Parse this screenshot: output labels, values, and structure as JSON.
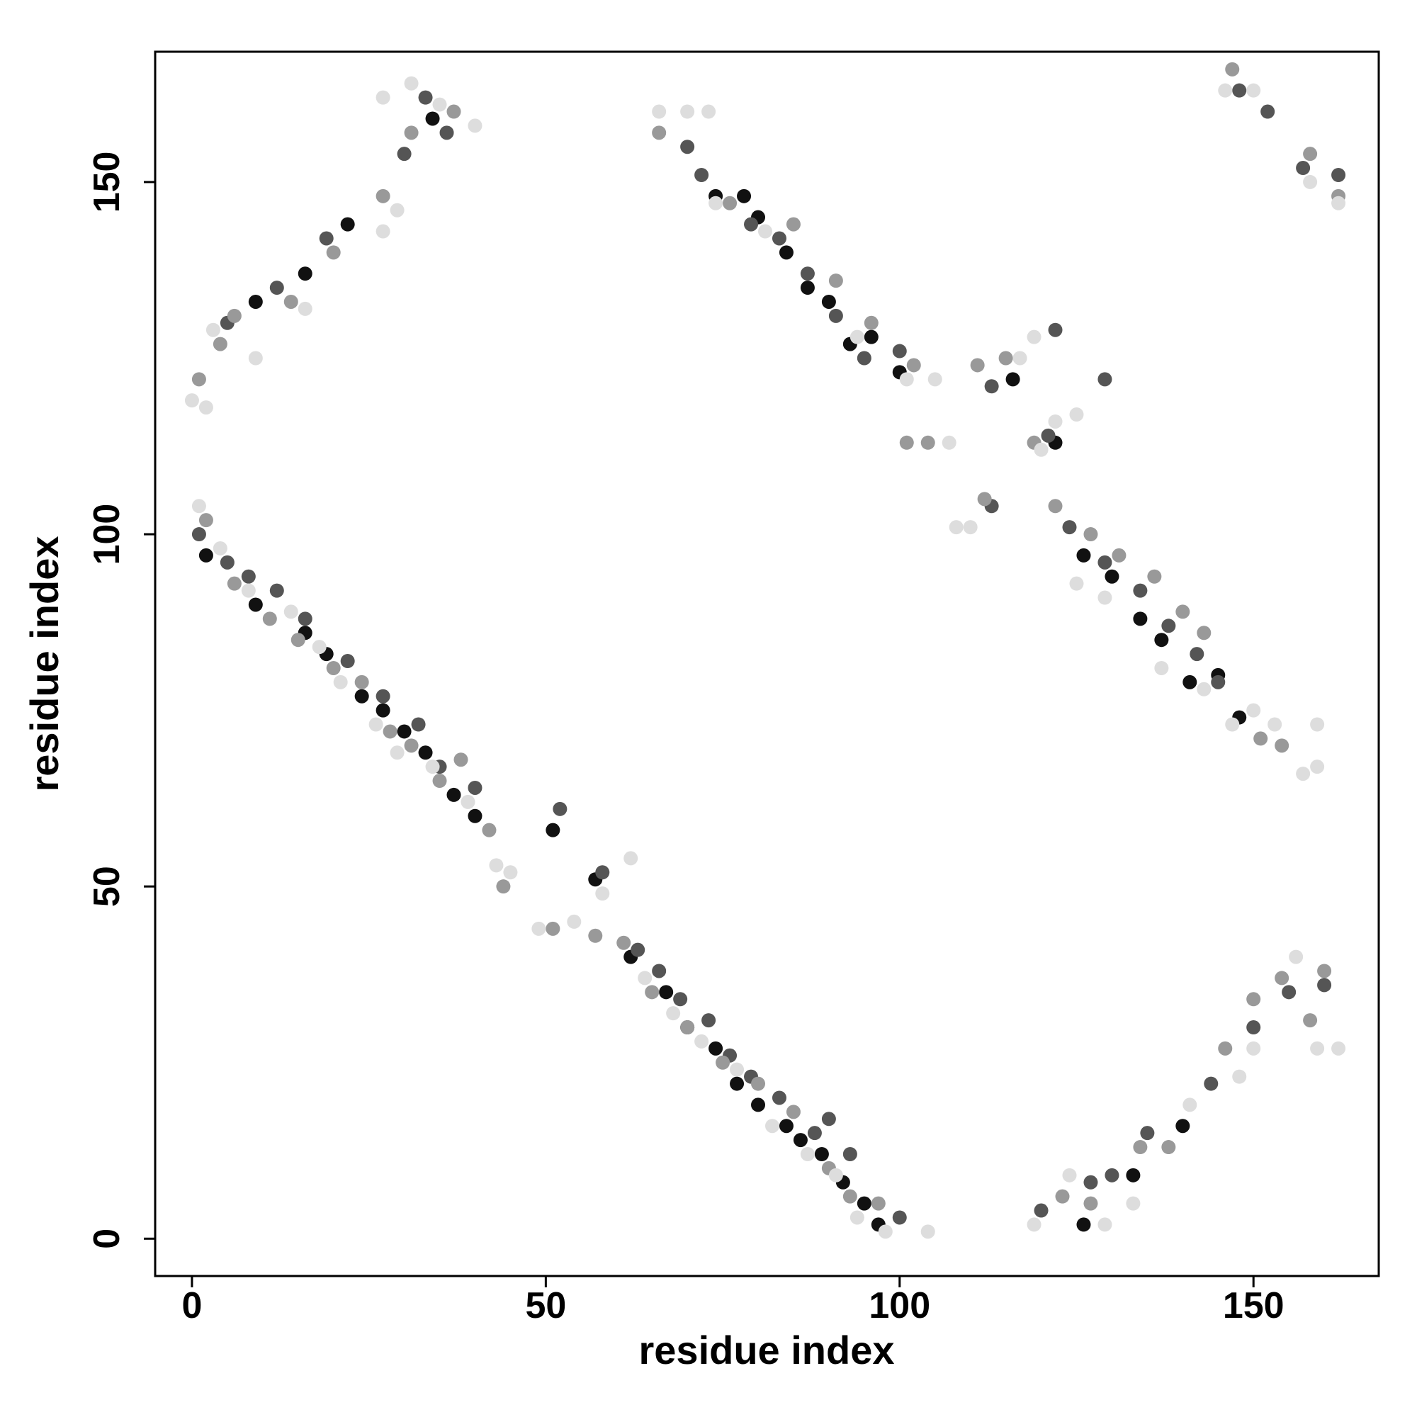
{
  "chart_data": {
    "type": "scatter",
    "xlabel": "residue index",
    "ylabel": "residue index",
    "xlim": [
      -5.2,
      167.7
    ],
    "ylim": [
      -5.3,
      168.5
    ],
    "xticks": [
      0,
      50,
      100,
      150
    ],
    "yticks": [
      0,
      50,
      100,
      150
    ],
    "series": [
      {
        "color": "#111111",
        "x": [
          2,
          9,
          16,
          19,
          24,
          27,
          30,
          33,
          37,
          40,
          51,
          57,
          62,
          67,
          70,
          74,
          77,
          80,
          84,
          86,
          89,
          92,
          95,
          97,
          9,
          16,
          22,
          34,
          74,
          78,
          80,
          84,
          87,
          90,
          93,
          96,
          100,
          116,
          122,
          126,
          130,
          134,
          137,
          141,
          145,
          148,
          133,
          140,
          126
        ],
        "y": [
          97,
          90,
          86,
          83,
          77,
          75,
          72,
          69,
          63,
          60,
          58,
          51,
          40,
          35,
          30,
          27,
          22,
          19,
          16,
          14,
          12,
          8,
          5,
          2,
          133,
          137,
          144,
          159,
          148,
          148,
          145,
          140,
          135,
          133,
          127,
          128,
          123,
          122,
          113,
          97,
          94,
          88,
          85,
          79,
          80,
          74,
          9,
          16,
          2
        ]
      },
      {
        "color": "#555555",
        "x": [
          1,
          5,
          8,
          12,
          16,
          22,
          27,
          32,
          35,
          40,
          52,
          58,
          63,
          66,
          69,
          73,
          76,
          79,
          83,
          88,
          90,
          93,
          100,
          5,
          12,
          19,
          30,
          33,
          36,
          70,
          72,
          79,
          83,
          87,
          91,
          95,
          100,
          113,
          121,
          124,
          129,
          134,
          138,
          142,
          145,
          120,
          127,
          130,
          135,
          144,
          150,
          155,
          160,
          148,
          152,
          157,
          162,
          122,
          129,
          113
        ],
        "y": [
          100,
          96,
          94,
          92,
          88,
          82,
          77,
          73,
          67,
          64,
          61,
          52,
          41,
          38,
          34,
          31,
          26,
          23,
          20,
          15,
          17,
          12,
          3,
          130,
          135,
          142,
          154,
          162,
          157,
          155,
          151,
          144,
          142,
          137,
          131,
          125,
          126,
          121,
          114,
          101,
          96,
          92,
          87,
          83,
          79,
          4,
          8,
          9,
          15,
          22,
          30,
          35,
          36,
          163,
          160,
          152,
          151,
          129,
          122,
          104
        ]
      },
      {
        "color": "#999999",
        "x": [
          2,
          6,
          11,
          15,
          20,
          24,
          28,
          31,
          35,
          38,
          42,
          44,
          51,
          57,
          61,
          65,
          70,
          75,
          80,
          85,
          90,
          93,
          97,
          1,
          4,
          6,
          14,
          20,
          27,
          31,
          37,
          66,
          76,
          85,
          91,
          96,
          102,
          111,
          115,
          119,
          122,
          127,
          131,
          136,
          140,
          143,
          151,
          154,
          123,
          127,
          134,
          138,
          146,
          150,
          154,
          158,
          160,
          147,
          158,
          162,
          101,
          104,
          112
        ],
        "y": [
          102,
          93,
          88,
          85,
          81,
          79,
          72,
          70,
          65,
          68,
          58,
          50,
          44,
          43,
          42,
          35,
          30,
          25,
          22,
          18,
          10,
          6,
          5,
          122,
          127,
          131,
          133,
          140,
          148,
          157,
          160,
          157,
          147,
          144,
          136,
          130,
          124,
          124,
          125,
          113,
          104,
          100,
          97,
          94,
          89,
          86,
          71,
          70,
          6,
          5,
          13,
          13,
          27,
          34,
          37,
          31,
          38,
          166,
          154,
          148,
          113,
          113,
          105
        ]
      },
      {
        "color": "#dddddd",
        "x": [
          1,
          4,
          8,
          14,
          18,
          21,
          26,
          29,
          34,
          39,
          43,
          45,
          49,
          54,
          58,
          62,
          64,
          68,
          72,
          77,
          82,
          87,
          91,
          94,
          98,
          104,
          0,
          2,
          3,
          9,
          16,
          27,
          29,
          27,
          31,
          35,
          40,
          66,
          70,
          73,
          74,
          81,
          94,
          101,
          105,
          107,
          108,
          110,
          119,
          120,
          125,
          117,
          122,
          125,
          129,
          137,
          143,
          147,
          150,
          153,
          157,
          159,
          159,
          119,
          124,
          129,
          133,
          141,
          148,
          150,
          156,
          159,
          162,
          158,
          162,
          150,
          146
        ],
        "y": [
          104,
          98,
          92,
          89,
          84,
          79,
          73,
          69,
          67,
          62,
          53,
          52,
          44,
          45,
          49,
          54,
          37,
          32,
          28,
          24,
          16,
          12,
          9,
          3,
          1,
          1,
          119,
          118,
          129,
          125,
          132,
          143,
          146,
          162,
          164,
          161,
          158,
          160,
          160,
          160,
          147,
          143,
          128,
          122,
          122,
          113,
          101,
          101,
          128,
          112,
          117,
          125,
          116,
          93,
          91,
          81,
          78,
          73,
          75,
          73,
          66,
          73,
          67,
          2,
          9,
          2,
          5,
          19,
          23,
          27,
          40,
          27,
          27,
          150,
          147,
          163,
          163
        ]
      }
    ]
  }
}
